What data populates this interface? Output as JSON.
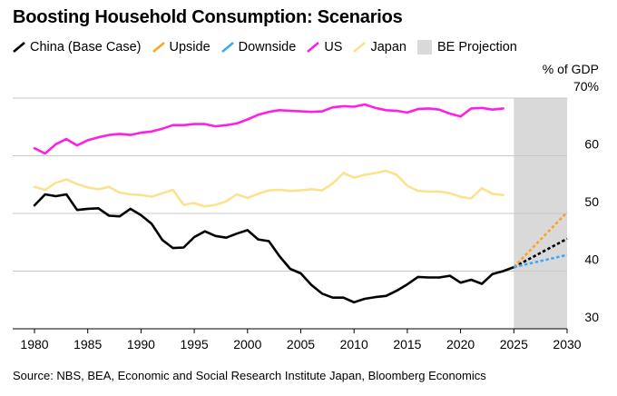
{
  "chart_data": {
    "type": "line",
    "title": "Boosting Household Consumption: Scenarios",
    "ylabel": "% of GDP",
    "xlim": [
      1980,
      2030
    ],
    "ylim": [
      30,
      70
    ],
    "yticks": [
      30,
      40,
      50,
      60,
      70
    ],
    "ytick_labels": [
      "30",
      "40",
      "50",
      "60",
      "70%"
    ],
    "xticks": [
      1980,
      1985,
      1990,
      1995,
      2000,
      2005,
      2010,
      2015,
      2020,
      2025,
      2030
    ],
    "xtick_labels": [
      "1980",
      "1985",
      "1990",
      "1995",
      "2000",
      "2005",
      "2010",
      "2015",
      "2020",
      "2025",
      "2030"
    ],
    "projection_span": [
      2025,
      2030
    ],
    "legend": [
      {
        "label": "China (Base Case)",
        "color": "#000000",
        "kind": "line"
      },
      {
        "label": "Upside",
        "color": "#f6a623",
        "kind": "line"
      },
      {
        "label": "Downside",
        "color": "#3fa9f5",
        "kind": "line"
      },
      {
        "label": "US",
        "color": "#ff1fe4",
        "kind": "line"
      },
      {
        "label": "Japan",
        "color": "#fbe38e",
        "kind": "line"
      },
      {
        "label": "BE Projection",
        "color": "#d9d9d9",
        "kind": "box"
      }
    ],
    "series": [
      {
        "name": "US",
        "color": "#ff1fe4",
        "dashed": false,
        "x": [
          1980,
          1981,
          1982,
          1983,
          1984,
          1985,
          1986,
          1987,
          1988,
          1989,
          1990,
          1991,
          1992,
          1993,
          1994,
          1995,
          1996,
          1997,
          1998,
          1999,
          2000,
          2001,
          2002,
          2003,
          2004,
          2005,
          2006,
          2007,
          2008,
          2009,
          2010,
          2011,
          2012,
          2013,
          2014,
          2015,
          2016,
          2017,
          2018,
          2019,
          2020,
          2021,
          2022,
          2023,
          2024
        ],
        "values": [
          61.3,
          60.4,
          62.0,
          62.9,
          61.8,
          62.7,
          63.2,
          63.6,
          63.8,
          63.6,
          64.0,
          64.2,
          64.7,
          65.3,
          65.3,
          65.5,
          65.5,
          65.1,
          65.3,
          65.6,
          66.3,
          67.1,
          67.6,
          67.9,
          67.8,
          67.7,
          67.6,
          67.7,
          68.4,
          68.6,
          68.5,
          68.9,
          68.3,
          67.9,
          67.8,
          67.5,
          68.1,
          68.2,
          68.0,
          67.3,
          66.8,
          68.2,
          68.3,
          68.0,
          68.2
        ]
      },
      {
        "name": "Japan",
        "color": "#fbe38e",
        "dashed": false,
        "x": [
          1980,
          1981,
          1982,
          1983,
          1984,
          1985,
          1986,
          1987,
          1988,
          1989,
          1990,
          1991,
          1992,
          1993,
          1994,
          1995,
          1996,
          1997,
          1998,
          1999,
          2000,
          2001,
          2002,
          2003,
          2004,
          2005,
          2006,
          2007,
          2008,
          2009,
          2010,
          2011,
          2012,
          2013,
          2014,
          2015,
          2016,
          2017,
          2018,
          2019,
          2020,
          2021,
          2022,
          2023,
          2024
        ],
        "values": [
          54.6,
          54.1,
          55.3,
          55.9,
          55.1,
          54.5,
          54.2,
          54.6,
          53.6,
          53.3,
          53.2,
          52.9,
          53.5,
          54.1,
          51.5,
          51.8,
          51.2,
          51.5,
          52.1,
          53.3,
          52.7,
          53.4,
          54.0,
          54.1,
          53.9,
          54.0,
          54.2,
          54.0,
          55.2,
          57.0,
          56.2,
          56.7,
          57.0,
          57.4,
          56.7,
          54.8,
          53.9,
          53.8,
          53.8,
          53.5,
          52.9,
          52.6,
          54.4,
          53.4,
          53.2
        ]
      },
      {
        "name": "China (Base Case)",
        "color": "#000000",
        "dashed": false,
        "x": [
          1980,
          1981,
          1982,
          1983,
          1984,
          1985,
          1986,
          1987,
          1988,
          1989,
          1990,
          1991,
          1992,
          1993,
          1994,
          1995,
          1996,
          1997,
          1998,
          1999,
          2000,
          2001,
          2002,
          2003,
          2004,
          2005,
          2006,
          2007,
          2008,
          2009,
          2010,
          2011,
          2012,
          2013,
          2014,
          2015,
          2016,
          2017,
          2018,
          2019,
          2020,
          2021,
          2022,
          2023,
          2024,
          2025
        ],
        "values": [
          51.4,
          53.3,
          53.0,
          53.3,
          50.6,
          50.8,
          50.9,
          49.6,
          49.5,
          50.8,
          49.7,
          48.2,
          45.4,
          44.0,
          44.1,
          45.9,
          46.9,
          46.1,
          45.8,
          46.5,
          47.1,
          45.5,
          45.2,
          42.6,
          40.4,
          39.6,
          37.6,
          36.1,
          35.4,
          35.4,
          34.6,
          35.2,
          35.5,
          35.7,
          36.6,
          37.7,
          39.0,
          38.9,
          38.9,
          39.2,
          38.0,
          38.5,
          37.8,
          39.5,
          40.0,
          40.7
        ]
      },
      {
        "name": "China (Base Case) projection",
        "color": "#000000",
        "dashed": true,
        "x": [
          2025,
          2030
        ],
        "values": [
          40.7,
          45.6
        ]
      },
      {
        "name": "Upside",
        "color": "#f6a623",
        "dashed": true,
        "x": [
          2025,
          2030
        ],
        "values": [
          40.7,
          50.2
        ]
      },
      {
        "name": "Downside",
        "color": "#3fa9f5",
        "dashed": true,
        "x": [
          2025,
          2030
        ],
        "values": [
          40.7,
          42.8
        ]
      }
    ]
  },
  "source": "Source: NBS, BEA, Economic and Social Research Institute Japan, Bloomberg Economics"
}
